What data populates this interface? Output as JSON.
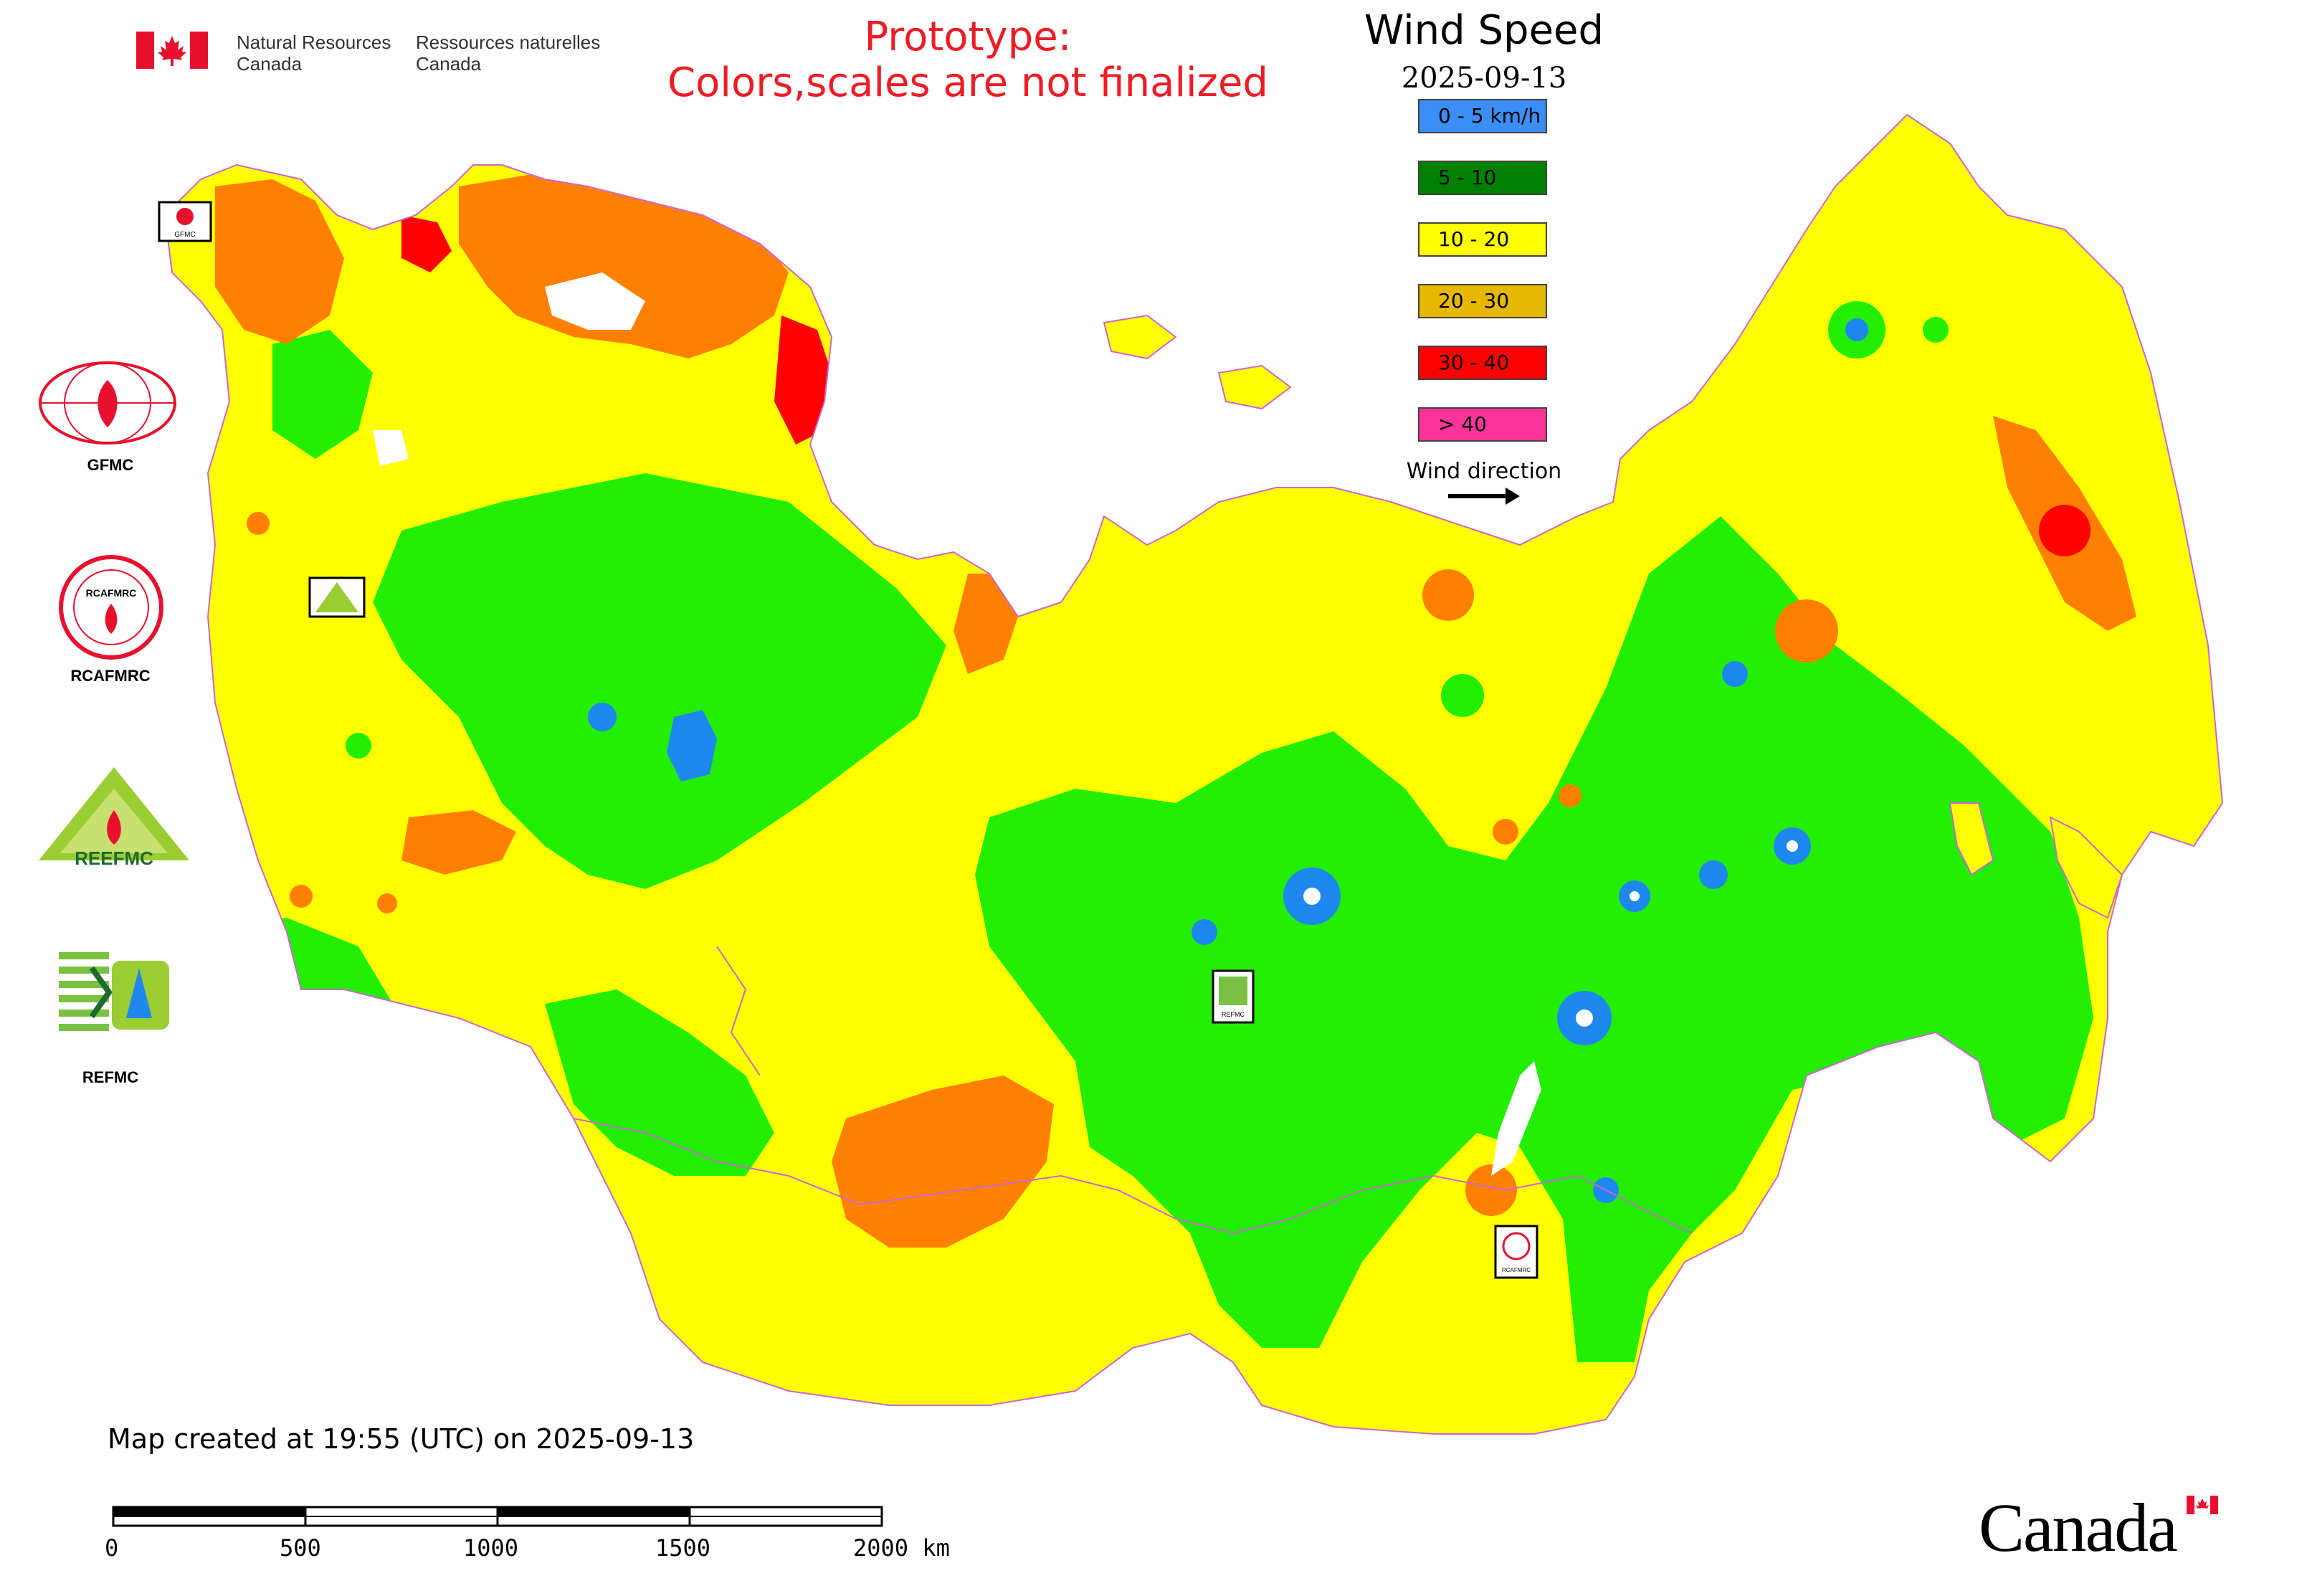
{
  "header": {
    "org_en_line1": "Natural Resources",
    "org_en_line2": "Canada",
    "org_fr_line1": "Ressources naturelles",
    "org_fr_line2": "Canada"
  },
  "prototype_notice": {
    "line1": "Prototype:",
    "line2": "Colors,scales are not finalized"
  },
  "legend": {
    "title": "Wind Speed",
    "date": "2025-09-13",
    "items": [
      {
        "label": "0 - 5 km/h",
        "color": "#3a8ef6"
      },
      {
        "label": "5 - 10",
        "color": "#008000"
      },
      {
        "label": "10 - 20",
        "color": "#ffff00"
      },
      {
        "label": "20 - 30",
        "color": "#e6b800"
      },
      {
        "label": "30 - 40",
        "color": "#ff0000"
      },
      {
        "label": "> 40",
        "color": "#ff3399"
      }
    ],
    "wind_direction_label": "Wind direction"
  },
  "map_colors": {
    "calm": "#1e88f0",
    "light": "#22ee00",
    "moderate": "#ffff00",
    "strong": "#ff8000",
    "very_strong": "#ff0000",
    "extreme": "#ff3399",
    "water": "#ffffff",
    "border": "#cc66cc"
  },
  "side_logos": [
    {
      "label": "GFMC"
    },
    {
      "label": "RCAFMRC"
    },
    {
      "label": ""
    },
    {
      "label": "REFMC"
    }
  ],
  "map_badges": {
    "gfmc": "GFMC",
    "refmc": "REFMC",
    "rcafmrc": "RCAFMRC"
  },
  "footer": {
    "created_text": "Map created at 19:55 (UTC) on 2025-09-13",
    "scale_labels": [
      "0",
      "500",
      "1000",
      "1500",
      "2000 km"
    ],
    "wordmark": "Canada"
  },
  "logo_texts": {
    "reefmc": "REEFMC",
    "rcafmrc_inner": "RCAFMRC"
  }
}
